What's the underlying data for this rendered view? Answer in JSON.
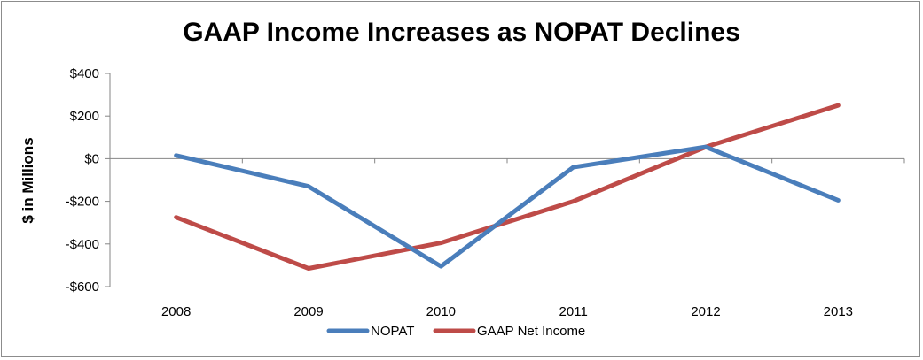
{
  "chart_data": {
    "type": "line",
    "title": "GAAP Income Increases as NOPAT Declines",
    "xlabel": "",
    "ylabel": "$ in Millions",
    "categories": [
      "2008",
      "2009",
      "2010",
      "2011",
      "2012",
      "2013"
    ],
    "ylim": [
      -600,
      400
    ],
    "yticks": [
      400,
      200,
      0,
      -200,
      -400,
      -600
    ],
    "ytick_labels": [
      "$400",
      "$200",
      "$0",
      "-$200",
      "-$400",
      "-$600"
    ],
    "series": [
      {
        "name": "NOPAT",
        "color": "#4a7ebb",
        "values": [
          15,
          -130,
          -505,
          -40,
          55,
          -195
        ]
      },
      {
        "name": "GAAP Net Income",
        "color": "#be4b48",
        "values": [
          -275,
          -515,
          -395,
          -200,
          55,
          250
        ]
      }
    ],
    "legend": "bottom",
    "grid": false
  }
}
